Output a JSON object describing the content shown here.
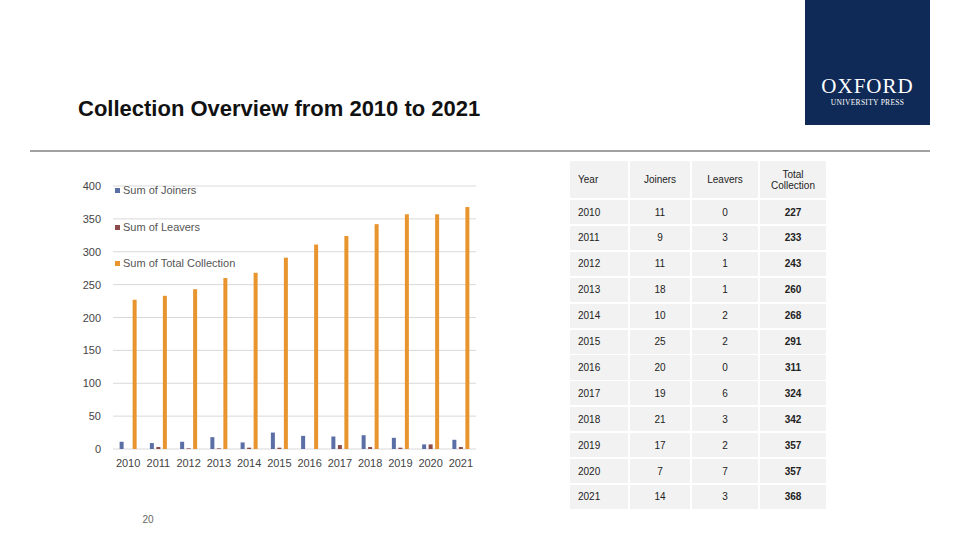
{
  "page": {
    "title": "Collection Overview from 2010 to 2021",
    "logo": {
      "name": "OXFORD",
      "subtitle": "UNIVERSITY PRESS"
    },
    "page_number": "20"
  },
  "chart_data": {
    "type": "bar",
    "categories": [
      "2010",
      "2011",
      "2012",
      "2013",
      "2014",
      "2015",
      "2016",
      "2017",
      "2018",
      "2019",
      "2020",
      "2021"
    ],
    "series": [
      {
        "name": "Sum of Joiners",
        "color": "#5b6fa6",
        "values": [
          11,
          9,
          11,
          18,
          10,
          25,
          20,
          19,
          21,
          17,
          7,
          14
        ]
      },
      {
        "name": "Sum of Leavers",
        "color": "#8c4b4b",
        "values": [
          0,
          3,
          1,
          1,
          2,
          2,
          0,
          6,
          3,
          2,
          7,
          3
        ]
      },
      {
        "name": "Sum of Total Collection",
        "color": "#e8952f",
        "values": [
          227,
          233,
          243,
          260,
          268,
          291,
          311,
          324,
          342,
          357,
          357,
          368
        ]
      }
    ],
    "ylim": [
      0,
      400
    ],
    "yticks": [
      0,
      50,
      100,
      150,
      200,
      250,
      300,
      350,
      400
    ],
    "grid": true,
    "legend": "top-left"
  },
  "table": {
    "header": [
      "Year",
      "Joiners",
      "Leavers",
      "Total Collection"
    ],
    "rows": [
      [
        2010,
        11,
        0,
        227
      ],
      [
        2011,
        9,
        3,
        233
      ],
      [
        2012,
        11,
        1,
        243
      ],
      [
        2013,
        18,
        1,
        260
      ],
      [
        2014,
        10,
        2,
        268
      ],
      [
        2015,
        25,
        2,
        291
      ],
      [
        2016,
        20,
        0,
        311
      ],
      [
        2017,
        19,
        6,
        324
      ],
      [
        2018,
        21,
        3,
        342
      ],
      [
        2019,
        17,
        2,
        357
      ],
      [
        2020,
        7,
        7,
        357
      ],
      [
        2021,
        14,
        3,
        368
      ]
    ]
  }
}
